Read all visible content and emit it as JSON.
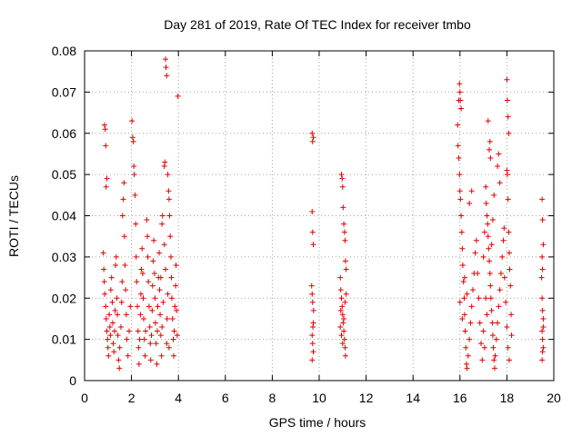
{
  "chart_data": {
    "type": "scatter",
    "title": "Day 281 of 2019, Rate Of TEC Index for receiver tmbo",
    "xlabel": "GPS time / hours",
    "ylabel": "ROTI / TECUs",
    "xlim": [
      0,
      20
    ],
    "ylim": [
      0,
      0.08
    ],
    "xticks": [
      "0",
      "2",
      "4",
      "6",
      "8",
      "10",
      "12",
      "14",
      "16",
      "18",
      "20"
    ],
    "yticks": [
      "0",
      "0.01",
      "0.02",
      "0.03",
      "0.04",
      "0.05",
      "0.06",
      "0.07",
      "0.08"
    ],
    "grid": true,
    "marker": "+",
    "color": "#e00000",
    "series": [
      {
        "name": "ROTI",
        "points": [
          [
            0.85,
            0.062
          ],
          [
            0.88,
            0.061
          ],
          [
            0.9,
            0.057
          ],
          [
            0.92,
            0.047
          ],
          [
            0.95,
            0.049
          ],
          [
            0.8,
            0.031
          ],
          [
            0.82,
            0.027
          ],
          [
            0.84,
            0.024
          ],
          [
            0.86,
            0.021
          ],
          [
            0.9,
            0.018
          ],
          [
            0.92,
            0.015
          ],
          [
            0.95,
            0.012
          ],
          [
            0.98,
            0.01
          ],
          [
            1.0,
            0.008
          ],
          [
            1.02,
            0.006
          ],
          [
            1.05,
            0.016
          ],
          [
            1.08,
            0.013
          ],
          [
            1.1,
            0.011
          ],
          [
            1.12,
            0.022
          ],
          [
            1.15,
            0.025
          ],
          [
            1.18,
            0.019
          ],
          [
            1.2,
            0.014
          ],
          [
            1.22,
            0.009
          ],
          [
            1.25,
            0.007
          ],
          [
            1.28,
            0.012
          ],
          [
            1.3,
            0.017
          ],
          [
            1.32,
            0.028
          ],
          [
            1.35,
            0.03
          ],
          [
            1.38,
            0.02
          ],
          [
            1.4,
            0.016
          ],
          [
            1.42,
            0.011
          ],
          [
            1.45,
            0.005
          ],
          [
            1.48,
            0.003
          ],
          [
            1.5,
            0.008
          ],
          [
            1.55,
            0.013
          ],
          [
            1.58,
            0.019
          ],
          [
            1.6,
            0.024
          ],
          [
            1.62,
            0.04
          ],
          [
            1.65,
            0.044
          ],
          [
            1.68,
            0.048
          ],
          [
            1.7,
            0.035
          ],
          [
            1.72,
            0.028
          ],
          [
            1.75,
            0.022
          ],
          [
            1.78,
            0.016
          ],
          [
            1.8,
            0.01
          ],
          [
            1.85,
            0.006
          ],
          [
            1.9,
            0.012
          ],
          [
            1.95,
            0.018
          ],
          [
            2.02,
            0.063
          ],
          [
            2.05,
            0.059
          ],
          [
            2.08,
            0.058
          ],
          [
            2.1,
            0.052
          ],
          [
            2.12,
            0.05
          ],
          [
            2.15,
            0.045
          ],
          [
            2.18,
            0.038
          ],
          [
            2.2,
            0.03
          ],
          [
            2.22,
            0.024
          ],
          [
            2.25,
            0.018
          ],
          [
            2.28,
            0.012
          ],
          [
            2.3,
            0.008
          ],
          [
            2.32,
            0.004
          ],
          [
            2.35,
            0.01
          ],
          [
            2.38,
            0.016
          ],
          [
            2.4,
            0.021
          ],
          [
            2.42,
            0.027
          ],
          [
            2.45,
            0.032
          ],
          [
            2.48,
            0.026
          ],
          [
            2.5,
            0.02
          ],
          [
            2.52,
            0.015
          ],
          [
            2.55,
            0.01
          ],
          [
            2.58,
            0.006
          ],
          [
            2.6,
            0.012
          ],
          [
            2.65,
            0.039
          ],
          [
            2.68,
            0.035
          ],
          [
            2.7,
            0.03
          ],
          [
            2.72,
            0.024
          ],
          [
            2.75,
            0.018
          ],
          [
            2.78,
            0.013
          ],
          [
            2.8,
            0.009
          ],
          [
            2.82,
            0.005
          ],
          [
            2.85,
            0.011
          ],
          [
            2.88,
            0.017
          ],
          [
            2.9,
            0.023
          ],
          [
            2.92,
            0.029
          ],
          [
            2.95,
            0.034
          ],
          [
            2.98,
            0.026
          ],
          [
            3.0,
            0.02
          ],
          [
            3.02,
            0.014
          ],
          [
            3.05,
            0.009
          ],
          [
            3.08,
            0.004
          ],
          [
            3.1,
            0.012
          ],
          [
            3.12,
            0.018
          ],
          [
            3.15,
            0.025
          ],
          [
            3.18,
            0.031
          ],
          [
            3.2,
            0.022
          ],
          [
            3.22,
            0.016
          ],
          [
            3.25,
            0.011
          ],
          [
            3.28,
            0.006
          ],
          [
            3.3,
            0.038
          ],
          [
            3.32,
            0.04
          ],
          [
            3.45,
            0.078
          ],
          [
            3.47,
            0.076
          ],
          [
            3.5,
            0.074
          ],
          [
            3.4,
            0.052
          ],
          [
            3.42,
            0.053
          ],
          [
            3.55,
            0.05
          ],
          [
            3.58,
            0.046
          ],
          [
            3.6,
            0.044
          ],
          [
            3.62,
            0.04
          ],
          [
            3.65,
            0.035
          ],
          [
            3.68,
            0.03
          ],
          [
            3.7,
            0.025
          ],
          [
            3.72,
            0.02
          ],
          [
            3.75,
            0.015
          ],
          [
            3.78,
            0.01
          ],
          [
            3.8,
            0.006
          ],
          [
            3.82,
            0.012
          ],
          [
            3.85,
            0.018
          ],
          [
            3.88,
            0.023
          ],
          [
            3.9,
            0.028
          ],
          [
            3.92,
            0.017
          ],
          [
            3.95,
            0.011
          ],
          [
            3.98,
            0.069
          ],
          [
            3.5,
            0.009
          ],
          [
            3.52,
            0.015
          ],
          [
            3.55,
            0.021
          ],
          [
            3.45,
            0.027
          ],
          [
            3.4,
            0.033
          ],
          [
            3.35,
            0.019
          ],
          [
            3.3,
            0.013
          ],
          [
            3.25,
            0.025
          ],
          [
            3.6,
            0.008
          ],
          [
            9.7,
            0.06
          ],
          [
            9.72,
            0.058
          ],
          [
            9.75,
            0.059
          ],
          [
            9.7,
            0.041
          ],
          [
            9.72,
            0.036
          ],
          [
            9.75,
            0.033
          ],
          [
            9.68,
            0.023
          ],
          [
            9.7,
            0.021
          ],
          [
            9.72,
            0.019
          ],
          [
            9.75,
            0.014
          ],
          [
            9.7,
            0.011
          ],
          [
            9.72,
            0.009
          ],
          [
            9.75,
            0.007
          ],
          [
            9.7,
            0.005
          ],
          [
            9.73,
            0.013
          ],
          [
            9.76,
            0.017
          ],
          [
            10.95,
            0.05
          ],
          [
            10.98,
            0.049
          ],
          [
            11.0,
            0.047
          ],
          [
            11.02,
            0.042
          ],
          [
            11.05,
            0.038
          ],
          [
            11.08,
            0.036
          ],
          [
            11.1,
            0.034
          ],
          [
            11.12,
            0.029
          ],
          [
            11.15,
            0.027
          ],
          [
            10.9,
            0.025
          ],
          [
            10.92,
            0.022
          ],
          [
            10.95,
            0.02
          ],
          [
            10.98,
            0.018
          ],
          [
            11.0,
            0.016
          ],
          [
            11.02,
            0.014
          ],
          [
            11.05,
            0.012
          ],
          [
            11.08,
            0.01
          ],
          [
            11.1,
            0.008
          ],
          [
            11.12,
            0.006
          ],
          [
            10.9,
            0.013
          ],
          [
            10.92,
            0.017
          ],
          [
            10.95,
            0.011
          ],
          [
            11.0,
            0.009
          ],
          [
            11.05,
            0.015
          ],
          [
            11.1,
            0.019
          ],
          [
            11.15,
            0.021
          ],
          [
            15.95,
            0.068
          ],
          [
            15.98,
            0.072
          ],
          [
            16.0,
            0.07
          ],
          [
            16.02,
            0.068
          ],
          [
            16.05,
            0.066
          ],
          [
            15.9,
            0.062
          ],
          [
            15.92,
            0.057
          ],
          [
            15.95,
            0.054
          ],
          [
            15.98,
            0.05
          ],
          [
            16.0,
            0.046
          ],
          [
            16.02,
            0.044
          ],
          [
            16.05,
            0.04
          ],
          [
            16.08,
            0.036
          ],
          [
            16.1,
            0.032
          ],
          [
            16.12,
            0.028
          ],
          [
            16.15,
            0.024
          ],
          [
            16.18,
            0.02
          ],
          [
            16.2,
            0.016
          ],
          [
            16.22,
            0.012
          ],
          [
            16.25,
            0.008
          ],
          [
            16.28,
            0.004
          ],
          [
            16.3,
            0.003
          ],
          [
            16.35,
            0.006
          ],
          [
            16.4,
            0.01
          ],
          [
            16.45,
            0.014
          ],
          [
            16.5,
            0.018
          ],
          [
            16.55,
            0.022
          ],
          [
            16.6,
            0.026
          ],
          [
            16.65,
            0.031
          ],
          [
            16.7,
            0.034
          ],
          [
            16.75,
            0.026
          ],
          [
            16.8,
            0.02
          ],
          [
            16.85,
            0.014
          ],
          [
            16.9,
            0.009
          ],
          [
            16.95,
            0.005
          ],
          [
            16.4,
            0.043
          ],
          [
            16.5,
            0.046
          ],
          [
            16.3,
            0.021
          ],
          [
            16.2,
            0.025
          ],
          [
            16.1,
            0.015
          ],
          [
            16.0,
            0.019
          ],
          [
            17.2,
            0.063
          ],
          [
            17.25,
            0.056
          ],
          [
            17.3,
            0.054
          ],
          [
            17.28,
            0.058
          ],
          [
            17.1,
            0.047
          ],
          [
            17.12,
            0.043
          ],
          [
            17.15,
            0.04
          ],
          [
            17.18,
            0.038
          ],
          [
            17.2,
            0.035
          ],
          [
            17.22,
            0.032
          ],
          [
            17.25,
            0.029
          ],
          [
            17.28,
            0.026
          ],
          [
            17.3,
            0.023
          ],
          [
            17.32,
            0.02
          ],
          [
            17.35,
            0.017
          ],
          [
            17.38,
            0.014
          ],
          [
            17.4,
            0.011
          ],
          [
            17.42,
            0.008
          ],
          [
            17.45,
            0.005
          ],
          [
            17.48,
            0.003
          ],
          [
            17.5,
            0.006
          ],
          [
            17.55,
            0.01
          ],
          [
            17.6,
            0.014
          ],
          [
            17.65,
            0.018
          ],
          [
            17.7,
            0.022
          ],
          [
            17.75,
            0.026
          ],
          [
            17.8,
            0.03
          ],
          [
            17.85,
            0.034
          ],
          [
            17.88,
            0.037
          ],
          [
            17.9,
            0.025
          ],
          [
            17.95,
            0.019
          ],
          [
            18.0,
            0.013
          ],
          [
            18.05,
            0.008
          ],
          [
            18.1,
            0.005
          ],
          [
            17.6,
            0.052
          ],
          [
            17.65,
            0.055
          ],
          [
            17.7,
            0.048
          ],
          [
            18.0,
            0.073
          ],
          [
            18.02,
            0.068
          ],
          [
            18.05,
            0.064
          ],
          [
            18.08,
            0.06
          ],
          [
            18.0,
            0.051
          ],
          [
            18.02,
            0.05
          ],
          [
            18.05,
            0.044
          ],
          [
            18.08,
            0.036
          ],
          [
            18.1,
            0.031
          ],
          [
            18.12,
            0.027
          ],
          [
            18.15,
            0.023
          ],
          [
            18.18,
            0.016
          ],
          [
            18.2,
            0.011
          ],
          [
            17.0,
            0.03
          ],
          [
            17.05,
            0.036
          ],
          [
            17.1,
            0.02
          ],
          [
            17.0,
            0.012
          ],
          [
            17.05,
            0.008
          ],
          [
            17.15,
            0.016
          ],
          [
            17.35,
            0.033
          ],
          [
            17.4,
            0.039
          ],
          [
            17.45,
            0.045
          ],
          [
            19.5,
            0.044
          ],
          [
            19.52,
            0.039
          ],
          [
            19.55,
            0.033
          ],
          [
            19.5,
            0.03
          ],
          [
            19.52,
            0.027
          ],
          [
            19.48,
            0.025
          ],
          [
            19.5,
            0.02
          ],
          [
            19.52,
            0.017
          ],
          [
            19.55,
            0.015
          ],
          [
            19.5,
            0.012
          ],
          [
            19.52,
            0.01
          ],
          [
            19.55,
            0.008
          ],
          [
            19.5,
            0.005
          ],
          [
            19.52,
            0.007
          ],
          [
            19.55,
            0.013
          ]
        ]
      }
    ]
  }
}
